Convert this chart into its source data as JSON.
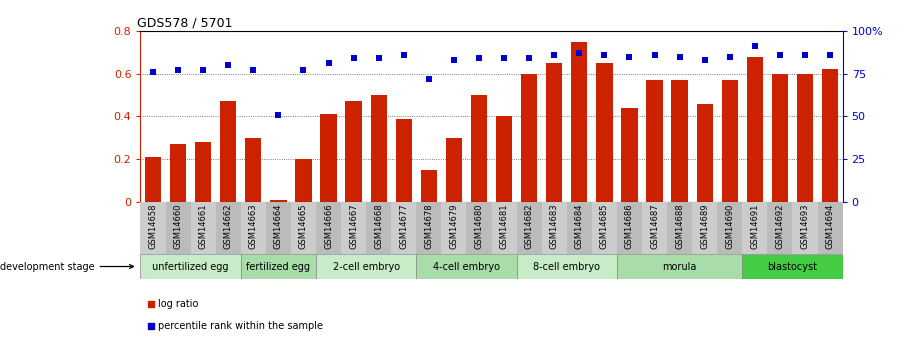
{
  "title": "GDS578 / 5701",
  "samples": [
    "GSM14658",
    "GSM14660",
    "GSM14661",
    "GSM14662",
    "GSM14663",
    "GSM14664",
    "GSM14665",
    "GSM14666",
    "GSM14667",
    "GSM14668",
    "GSM14677",
    "GSM14678",
    "GSM14679",
    "GSM14680",
    "GSM14681",
    "GSM14682",
    "GSM14683",
    "GSM14684",
    "GSM14685",
    "GSM14686",
    "GSM14687",
    "GSM14688",
    "GSM14689",
    "GSM14690",
    "GSM14691",
    "GSM14692",
    "GSM14693",
    "GSM14694"
  ],
  "log_ratio": [
    0.21,
    0.27,
    0.28,
    0.47,
    0.3,
    0.01,
    0.2,
    0.41,
    0.47,
    0.5,
    0.39,
    0.15,
    0.3,
    0.5,
    0.4,
    0.6,
    0.65,
    0.75,
    0.65,
    0.44,
    0.57,
    0.57,
    0.46,
    0.57,
    0.68,
    0.6,
    0.6,
    0.62
  ],
  "percentile_rank": [
    0.76,
    0.77,
    0.77,
    0.8,
    0.77,
    0.51,
    0.77,
    0.81,
    0.84,
    0.84,
    0.86,
    0.72,
    0.83,
    0.84,
    0.84,
    0.84,
    0.86,
    0.87,
    0.86,
    0.85,
    0.86,
    0.85,
    0.83,
    0.85,
    0.91,
    0.86,
    0.86,
    0.86
  ],
  "bar_color": "#cc2200",
  "scatter_color": "#0000cc",
  "ylim_left": [
    0,
    0.8
  ],
  "ylim_right": [
    0,
    1.0
  ],
  "yticks_left": [
    0,
    0.2,
    0.4,
    0.6,
    0.8
  ],
  "yticks_right": [
    0,
    0.25,
    0.5,
    0.75,
    1.0
  ],
  "ytick_labels_right": [
    "0",
    "25",
    "50",
    "75",
    "100%"
  ],
  "stages": [
    {
      "label": "unfertilized egg",
      "start": 0,
      "end": 4,
      "color": "#c8ecc8"
    },
    {
      "label": "fertilized egg",
      "start": 4,
      "end": 7,
      "color": "#a8dca8"
    },
    {
      "label": "2-cell embryo",
      "start": 7,
      "end": 11,
      "color": "#c8ecc8"
    },
    {
      "label": "4-cell embryo",
      "start": 11,
      "end": 15,
      "color": "#a8dca8"
    },
    {
      "label": "8-cell embryo",
      "start": 15,
      "end": 19,
      "color": "#c8ecc8"
    },
    {
      "label": "morula",
      "start": 19,
      "end": 24,
      "color": "#a8dca8"
    },
    {
      "label": "blastocyst",
      "start": 24,
      "end": 28,
      "color": "#44cc44"
    }
  ],
  "background_color": "#ffffff",
  "grid_color": "#888888",
  "dotted_lines": [
    0.2,
    0.4,
    0.6
  ],
  "xlabel_dev": "development stage",
  "legend_log": "log ratio",
  "legend_pct": "percentile rank within the sample",
  "tick_bg_color": "#cccccc"
}
